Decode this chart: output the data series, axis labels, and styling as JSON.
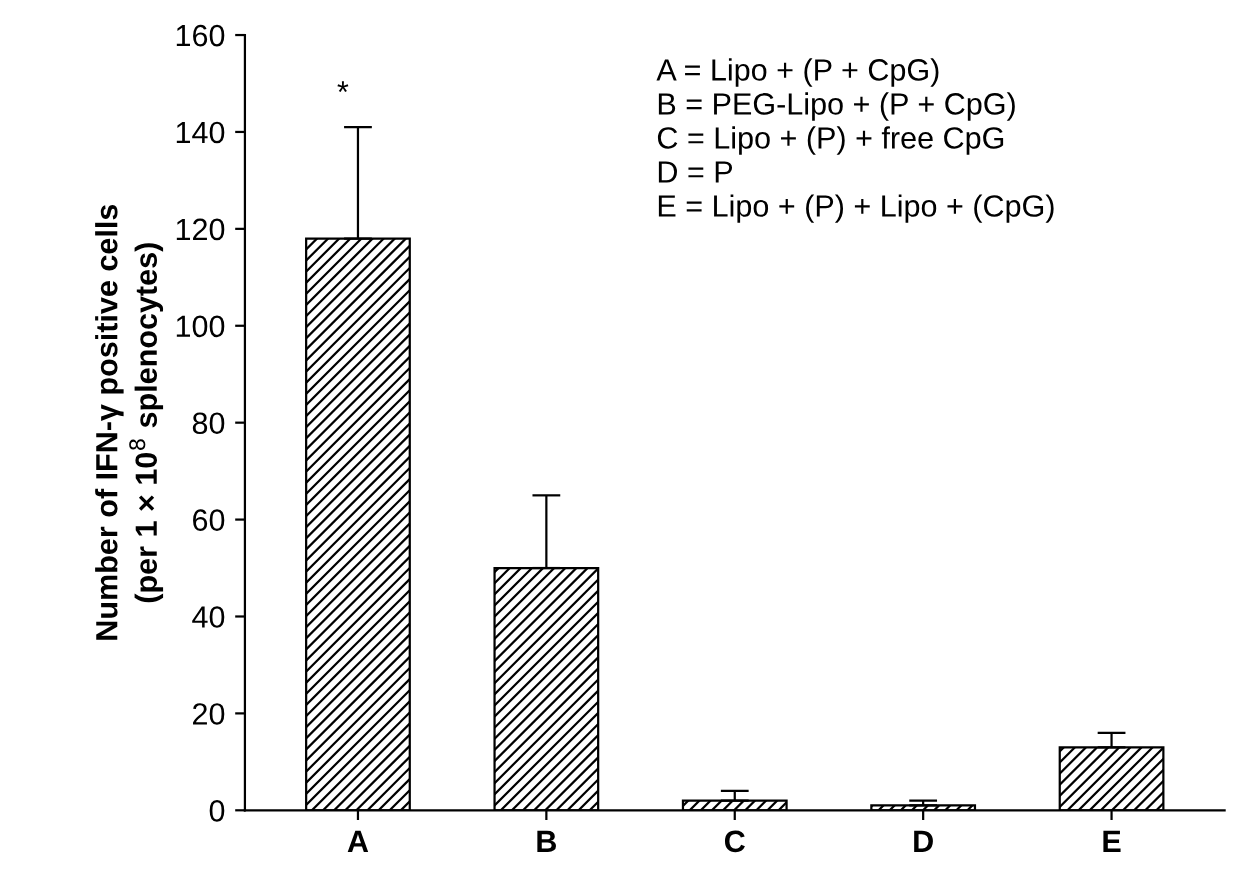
{
  "chart_data": {
    "type": "bar",
    "categories": [
      "A",
      "B",
      "C",
      "D",
      "E"
    ],
    "values": [
      118,
      50,
      2,
      1,
      13
    ],
    "errors": [
      [
        118,
        141
      ],
      [
        50,
        65
      ],
      [
        2,
        4
      ],
      [
        1,
        2
      ],
      [
        13,
        16
      ]
    ],
    "color": "#000000",
    "ylabel": "Number of IFN-γ positive cells\n(per 1 × 10$^{8}$ splenocytes)",
    "ylim": [
      0,
      160
    ],
    "yticks": [
      0,
      20,
      40,
      60,
      80,
      100,
      120,
      140,
      160
    ],
    "grid": false,
    "annotations": [
      "*",
      "A = Lipo + (P + CpG)\nB = PEG-Lipo + (P + CpG)\nC = Lipo + (P) + free CpG\nD = P\nE = Lipo + (P) + Lipo + (CpG)"
    ]
  }
}
